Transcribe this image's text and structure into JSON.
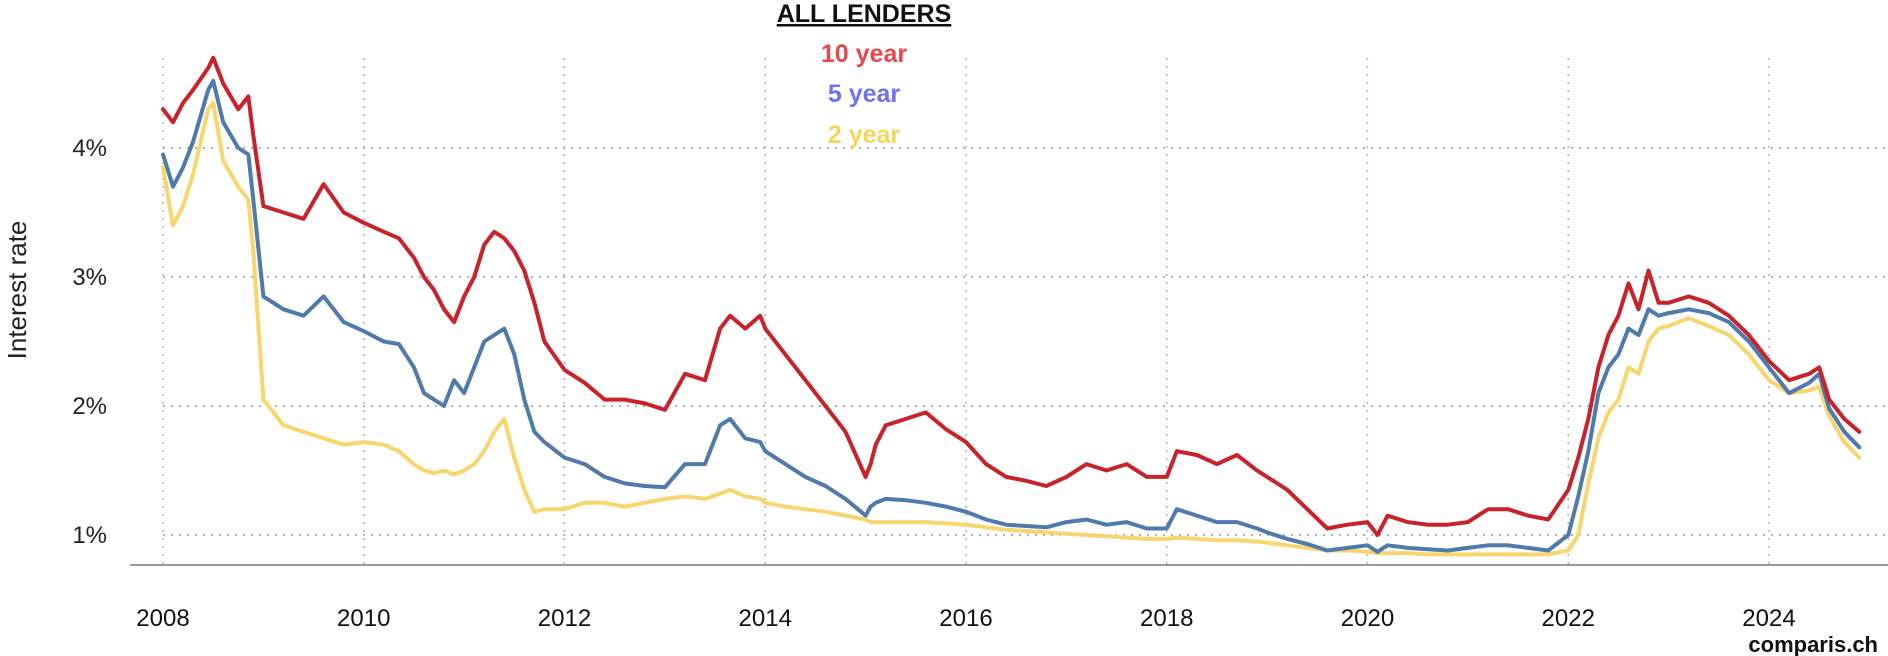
{
  "title": "ALL LENDERS",
  "brand": "comparis.ch",
  "chart_data": {
    "type": "line",
    "title": "ALL LENDERS",
    "ylabel": "Interest rate",
    "xlabel": "",
    "xlim": [
      2008,
      2024.9
    ],
    "ylim": [
      0.75,
      4.8
    ],
    "yticks": [
      1,
      2,
      3,
      4
    ],
    "ytick_labels": [
      "1%",
      "2%",
      "3%",
      "4%"
    ],
    "xticks": [
      2008,
      2010,
      2012,
      2014,
      2016,
      2018,
      2020,
      2022,
      2024
    ],
    "xtick_labels": [
      "2008",
      "2010",
      "2012",
      "2014",
      "2016",
      "2018",
      "2020",
      "2022",
      "2024"
    ],
    "grid": true,
    "legend_position": "top-center",
    "series": [
      {
        "name": "10 year",
        "legend_color": "#e8474b",
        "line_color": "#c8232b",
        "x": [
          2008.0,
          2008.1,
          2008.2,
          2008.3,
          2008.45,
          2008.5,
          2008.6,
          2008.75,
          2008.85,
          2008.9,
          2009.0,
          2009.2,
          2009.4,
          2009.6,
          2009.8,
          2010.0,
          2010.2,
          2010.35,
          2010.5,
          2010.6,
          2010.7,
          2010.8,
          2010.9,
          2011.0,
          2011.1,
          2011.2,
          2011.3,
          2011.4,
          2011.5,
          2011.6,
          2011.7,
          2011.8,
          2012.0,
          2012.2,
          2012.4,
          2012.6,
          2012.8,
          2013.0,
          2013.2,
          2013.4,
          2013.55,
          2013.65,
          2013.8,
          2013.95,
          2014.0,
          2014.2,
          2014.4,
          2014.6,
          2014.8,
          2015.0,
          2015.05,
          2015.1,
          2015.2,
          2015.4,
          2015.6,
          2015.8,
          2016.0,
          2016.2,
          2016.4,
          2016.6,
          2016.8,
          2017.0,
          2017.2,
          2017.4,
          2017.6,
          2017.8,
          2018.0,
          2018.1,
          2018.3,
          2018.5,
          2018.7,
          2018.9,
          2019.0,
          2019.2,
          2019.4,
          2019.6,
          2019.8,
          2020.0,
          2020.1,
          2020.2,
          2020.4,
          2020.6,
          2020.8,
          2021.0,
          2021.2,
          2021.4,
          2021.6,
          2021.8,
          2022.0,
          2022.1,
          2022.2,
          2022.3,
          2022.4,
          2022.5,
          2022.6,
          2022.7,
          2022.8,
          2022.9,
          2023.0,
          2023.2,
          2023.4,
          2023.6,
          2023.8,
          2024.0,
          2024.2,
          2024.4,
          2024.5,
          2024.6,
          2024.75,
          2024.9
        ],
        "y": [
          4.3,
          4.2,
          4.35,
          4.45,
          4.62,
          4.7,
          4.5,
          4.3,
          4.4,
          4.1,
          3.55,
          3.5,
          3.45,
          3.72,
          3.5,
          3.42,
          3.35,
          3.3,
          3.15,
          3.0,
          2.9,
          2.75,
          2.65,
          2.85,
          3.0,
          3.25,
          3.35,
          3.3,
          3.2,
          3.05,
          2.8,
          2.5,
          2.28,
          2.18,
          2.05,
          2.05,
          2.02,
          1.97,
          2.25,
          2.2,
          2.6,
          2.7,
          2.6,
          2.7,
          2.6,
          2.4,
          2.2,
          2.0,
          1.8,
          1.45,
          1.55,
          1.7,
          1.85,
          1.9,
          1.95,
          1.82,
          1.72,
          1.55,
          1.45,
          1.42,
          1.38,
          1.45,
          1.55,
          1.5,
          1.55,
          1.45,
          1.45,
          1.65,
          1.62,
          1.55,
          1.62,
          1.5,
          1.45,
          1.35,
          1.2,
          1.05,
          1.08,
          1.1,
          1.0,
          1.15,
          1.1,
          1.08,
          1.08,
          1.1,
          1.2,
          1.2,
          1.15,
          1.12,
          1.35,
          1.6,
          1.9,
          2.3,
          2.55,
          2.7,
          2.95,
          2.75,
          3.05,
          2.8,
          2.8,
          2.85,
          2.8,
          2.7,
          2.55,
          2.35,
          2.2,
          2.25,
          2.3,
          2.05,
          1.9,
          1.8
        ]
      },
      {
        "name": "5 year",
        "legend_color": "#6f72ee",
        "line_color": "#4e7bab",
        "x": [
          2008.0,
          2008.1,
          2008.2,
          2008.3,
          2008.45,
          2008.5,
          2008.6,
          2008.75,
          2008.85,
          2008.9,
          2009.0,
          2009.2,
          2009.4,
          2009.6,
          2009.8,
          2010.0,
          2010.2,
          2010.35,
          2010.5,
          2010.6,
          2010.7,
          2010.8,
          2010.9,
          2011.0,
          2011.1,
          2011.2,
          2011.3,
          2011.4,
          2011.5,
          2011.6,
          2011.7,
          2011.8,
          2012.0,
          2012.2,
          2012.4,
          2012.6,
          2012.8,
          2013.0,
          2013.2,
          2013.4,
          2013.55,
          2013.65,
          2013.8,
          2013.95,
          2014.0,
          2014.2,
          2014.4,
          2014.6,
          2014.8,
          2015.0,
          2015.05,
          2015.1,
          2015.2,
          2015.4,
          2015.6,
          2015.8,
          2016.0,
          2016.2,
          2016.4,
          2016.6,
          2016.8,
          2017.0,
          2017.2,
          2017.4,
          2017.6,
          2017.8,
          2018.0,
          2018.1,
          2018.3,
          2018.5,
          2018.7,
          2018.9,
          2019.0,
          2019.2,
          2019.4,
          2019.6,
          2019.8,
          2020.0,
          2020.1,
          2020.2,
          2020.4,
          2020.6,
          2020.8,
          2021.0,
          2021.2,
          2021.4,
          2021.6,
          2021.8,
          2022.0,
          2022.1,
          2022.2,
          2022.3,
          2022.4,
          2022.5,
          2022.6,
          2022.7,
          2022.8,
          2022.9,
          2023.0,
          2023.2,
          2023.4,
          2023.6,
          2023.8,
          2024.0,
          2024.2,
          2024.4,
          2024.5,
          2024.6,
          2024.75,
          2024.9
        ],
        "y": [
          3.95,
          3.7,
          3.85,
          4.05,
          4.45,
          4.52,
          4.2,
          4.0,
          3.95,
          3.6,
          2.85,
          2.75,
          2.7,
          2.85,
          2.65,
          2.58,
          2.5,
          2.48,
          2.3,
          2.1,
          2.05,
          2.0,
          2.2,
          2.1,
          2.3,
          2.5,
          2.55,
          2.6,
          2.4,
          2.05,
          1.8,
          1.72,
          1.6,
          1.55,
          1.45,
          1.4,
          1.38,
          1.37,
          1.55,
          1.55,
          1.85,
          1.9,
          1.75,
          1.72,
          1.65,
          1.55,
          1.45,
          1.38,
          1.28,
          1.15,
          1.22,
          1.25,
          1.28,
          1.27,
          1.25,
          1.22,
          1.18,
          1.12,
          1.08,
          1.07,
          1.06,
          1.1,
          1.12,
          1.08,
          1.1,
          1.05,
          1.05,
          1.2,
          1.15,
          1.1,
          1.1,
          1.05,
          1.02,
          0.97,
          0.93,
          0.88,
          0.9,
          0.92,
          0.87,
          0.92,
          0.9,
          0.89,
          0.88,
          0.9,
          0.92,
          0.92,
          0.9,
          0.88,
          1.0,
          1.3,
          1.65,
          2.1,
          2.3,
          2.4,
          2.6,
          2.55,
          2.75,
          2.7,
          2.72,
          2.75,
          2.72,
          2.65,
          2.5,
          2.3,
          2.1,
          2.18,
          2.25,
          1.98,
          1.8,
          1.68
        ]
      },
      {
        "name": "2 year",
        "legend_color": "#f5d45c",
        "line_color": "#f8d66e",
        "x": [
          2008.0,
          2008.1,
          2008.2,
          2008.3,
          2008.45,
          2008.5,
          2008.6,
          2008.75,
          2008.85,
          2008.9,
          2009.0,
          2009.2,
          2009.4,
          2009.6,
          2009.8,
          2010.0,
          2010.2,
          2010.35,
          2010.5,
          2010.6,
          2010.7,
          2010.8,
          2010.9,
          2011.0,
          2011.1,
          2011.2,
          2011.3,
          2011.4,
          2011.5,
          2011.6,
          2011.7,
          2011.8,
          2012.0,
          2012.2,
          2012.4,
          2012.6,
          2012.8,
          2013.0,
          2013.2,
          2013.4,
          2013.55,
          2013.65,
          2013.8,
          2013.95,
          2014.0,
          2014.2,
          2014.4,
          2014.6,
          2014.8,
          2015.0,
          2015.05,
          2015.1,
          2015.2,
          2015.4,
          2015.6,
          2015.8,
          2016.0,
          2016.2,
          2016.4,
          2016.6,
          2016.8,
          2017.0,
          2017.2,
          2017.4,
          2017.6,
          2017.8,
          2018.0,
          2018.1,
          2018.3,
          2018.5,
          2018.7,
          2018.9,
          2019.0,
          2019.2,
          2019.4,
          2019.6,
          2019.8,
          2020.0,
          2020.1,
          2020.2,
          2020.4,
          2020.6,
          2020.8,
          2021.0,
          2021.2,
          2021.4,
          2021.6,
          2021.8,
          2022.0,
          2022.1,
          2022.2,
          2022.3,
          2022.4,
          2022.5,
          2022.6,
          2022.7,
          2022.8,
          2022.9,
          2023.0,
          2023.2,
          2023.4,
          2023.6,
          2023.8,
          2024.0,
          2024.2,
          2024.4,
          2024.5,
          2024.6,
          2024.75,
          2024.9
        ],
        "y": [
          3.85,
          3.4,
          3.55,
          3.8,
          4.3,
          4.35,
          3.9,
          3.7,
          3.6,
          3.2,
          2.05,
          1.85,
          1.8,
          1.75,
          1.7,
          1.72,
          1.7,
          1.65,
          1.55,
          1.5,
          1.48,
          1.5,
          1.47,
          1.5,
          1.55,
          1.65,
          1.8,
          1.9,
          1.6,
          1.35,
          1.18,
          1.2,
          1.2,
          1.25,
          1.25,
          1.22,
          1.25,
          1.28,
          1.3,
          1.28,
          1.32,
          1.35,
          1.3,
          1.28,
          1.25,
          1.22,
          1.2,
          1.18,
          1.15,
          1.12,
          1.1,
          1.1,
          1.1,
          1.1,
          1.1,
          1.09,
          1.08,
          1.06,
          1.04,
          1.03,
          1.02,
          1.01,
          1.0,
          0.99,
          0.98,
          0.97,
          0.97,
          0.98,
          0.97,
          0.96,
          0.96,
          0.95,
          0.94,
          0.92,
          0.9,
          0.88,
          0.88,
          0.87,
          0.86,
          0.86,
          0.86,
          0.85,
          0.85,
          0.85,
          0.85,
          0.85,
          0.85,
          0.85,
          0.88,
          1.0,
          1.4,
          1.75,
          1.95,
          2.05,
          2.3,
          2.25,
          2.5,
          2.6,
          2.62,
          2.68,
          2.62,
          2.55,
          2.4,
          2.2,
          2.1,
          2.12,
          2.15,
          1.92,
          1.72,
          1.6
        ]
      }
    ]
  }
}
